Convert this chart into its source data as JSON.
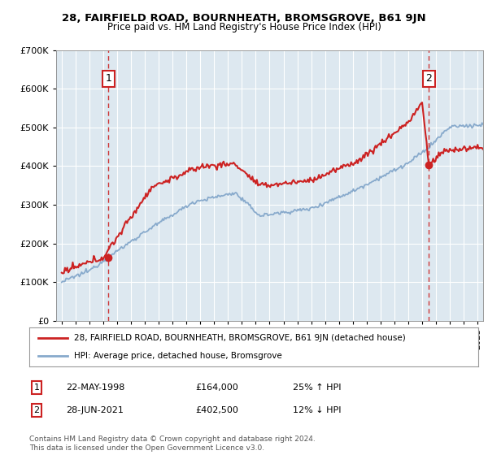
{
  "title1": "28, FAIRFIELD ROAD, BOURNHEATH, BROMSGROVE, B61 9JN",
  "title2": "Price paid vs. HM Land Registry's House Price Index (HPI)",
  "legend_line1": "28, FAIRFIELD ROAD, BOURNHEATH, BROMSGROVE, B61 9JN (detached house)",
  "legend_line2": "HPI: Average price, detached house, Bromsgrove",
  "table_row1": [
    "1",
    "22-MAY-1998",
    "£164,000",
    "25% ↑ HPI"
  ],
  "table_row2": [
    "2",
    "28-JUN-2021",
    "£402,500",
    "12% ↓ HPI"
  ],
  "footer": "Contains HM Land Registry data © Crown copyright and database right 2024.\nThis data is licensed under the Open Government Licence v3.0.",
  "point1_year": 1998.38,
  "point1_price": 164000,
  "point2_year": 2021.49,
  "point2_price": 402500,
  "red_color": "#cc2222",
  "blue_color": "#88aacc",
  "background_chart": "#dde8f0",
  "background_fig": "#ffffff",
  "grid_color": "#ffffff",
  "ylim": [
    0,
    700000
  ],
  "xlim_start": 1994.6,
  "xlim_end": 2025.4
}
